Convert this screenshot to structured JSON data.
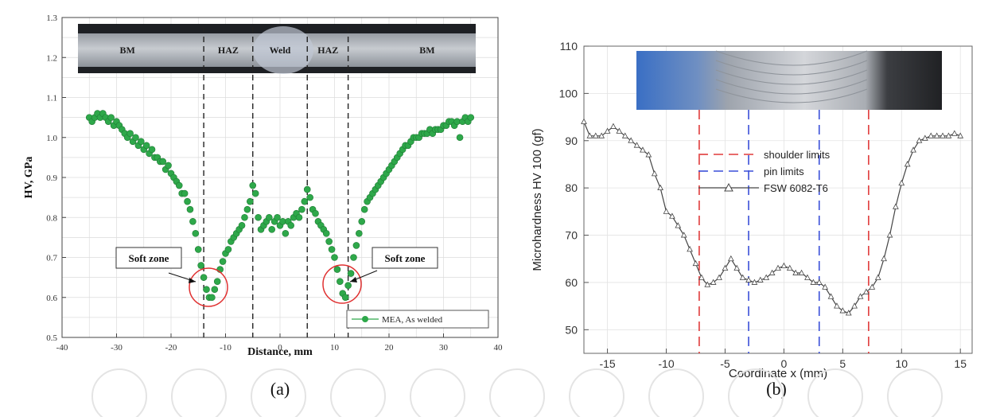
{
  "chart_data": [
    {
      "type": "scatter",
      "panel_label": "(a)",
      "xlabel": "Distance, mm",
      "ylabel": "HV, GPa",
      "xlim": [
        -40,
        40
      ],
      "ylim": [
        0.5,
        1.3
      ],
      "xticks": [
        "-40",
        "-30",
        "-20",
        "-10",
        "0",
        "10",
        "20",
        "30",
        "40"
      ],
      "yticks": [
        "0.5",
        "0.6",
        "0.7",
        "0.8",
        "0.9",
        "1.0",
        "1.1",
        "1.2",
        "1.3"
      ],
      "grid": true,
      "legend_position": "bottom-right",
      "vlines": [
        -14,
        -5,
        5,
        12.5
      ],
      "micrograph_labels": [
        "BM",
        "HAZ",
        "Weld",
        "HAZ",
        "BM"
      ],
      "annotations": [
        {
          "text": "Soft zone",
          "x": -13,
          "y": 0.61
        },
        {
          "text": "Soft zone",
          "x": 11,
          "y": 0.615
        }
      ],
      "series": [
        {
          "name": "MEA, As welded",
          "color": "#2ea84a",
          "points": [
            [
              -35,
              1.05
            ],
            [
              -34.5,
              1.04
            ],
            [
              -34,
              1.05
            ],
            [
              -33.5,
              1.06
            ],
            [
              -33,
              1.05
            ],
            [
              -32.5,
              1.06
            ],
            [
              -32,
              1.05
            ],
            [
              -31.5,
              1.04
            ],
            [
              -31,
              1.05
            ],
            [
              -30.5,
              1.03
            ],
            [
              -30,
              1.04
            ],
            [
              -29.5,
              1.03
            ],
            [
              -29,
              1.02
            ],
            [
              -28.5,
              1.01
            ],
            [
              -28,
              1.0
            ],
            [
              -27.5,
              1.01
            ],
            [
              -27,
              0.99
            ],
            [
              -26.5,
              1.0
            ],
            [
              -26,
              0.98
            ],
            [
              -25.5,
              0.99
            ],
            [
              -25,
              0.97
            ],
            [
              -24.5,
              0.98
            ],
            [
              -24,
              0.96
            ],
            [
              -23.5,
              0.97
            ],
            [
              -23,
              0.95
            ],
            [
              -22.5,
              0.95
            ],
            [
              -22,
              0.94
            ],
            [
              -21.5,
              0.94
            ],
            [
              -21,
              0.92
            ],
            [
              -20.5,
              0.93
            ],
            [
              -20,
              0.91
            ],
            [
              -19.5,
              0.9
            ],
            [
              -19,
              0.89
            ],
            [
              -18.5,
              0.88
            ],
            [
              -18,
              0.86
            ],
            [
              -17.5,
              0.86
            ],
            [
              -17,
              0.84
            ],
            [
              -16.5,
              0.82
            ],
            [
              -16,
              0.79
            ],
            [
              -15.5,
              0.76
            ],
            [
              -15,
              0.72
            ],
            [
              -14.5,
              0.68
            ],
            [
              -14,
              0.65
            ],
            [
              -13.5,
              0.62
            ],
            [
              -13,
              0.6
            ],
            [
              -12.5,
              0.6
            ],
            [
              -12,
              0.62
            ],
            [
              -11.5,
              0.64
            ],
            [
              -11,
              0.67
            ],
            [
              -10.5,
              0.69
            ],
            [
              -10,
              0.71
            ],
            [
              -9.5,
              0.72
            ],
            [
              -9,
              0.74
            ],
            [
              -8.5,
              0.75
            ],
            [
              -8,
              0.76
            ],
            [
              -7.5,
              0.77
            ],
            [
              -7,
              0.78
            ],
            [
              -6.5,
              0.8
            ],
            [
              -6,
              0.82
            ],
            [
              -5.5,
              0.84
            ],
            [
              -5,
              0.88
            ],
            [
              -4.5,
              0.86
            ],
            [
              -4,
              0.8
            ],
            [
              -3.5,
              0.77
            ],
            [
              -3,
              0.78
            ],
            [
              -2.5,
              0.79
            ],
            [
              -2,
              0.8
            ],
            [
              -1.5,
              0.77
            ],
            [
              -1,
              0.79
            ],
            [
              -0.5,
              0.8
            ],
            [
              0,
              0.78
            ],
            [
              0.5,
              0.79
            ],
            [
              1,
              0.76
            ],
            [
              1.5,
              0.79
            ],
            [
              2,
              0.78
            ],
            [
              2.5,
              0.8
            ],
            [
              3,
              0.81
            ],
            [
              3.5,
              0.8
            ],
            [
              4,
              0.82
            ],
            [
              4.5,
              0.84
            ],
            [
              5,
              0.87
            ],
            [
              5.5,
              0.85
            ],
            [
              6,
              0.82
            ],
            [
              6.5,
              0.81
            ],
            [
              7,
              0.79
            ],
            [
              7.5,
              0.78
            ],
            [
              8,
              0.77
            ],
            [
              8.5,
              0.76
            ],
            [
              9,
              0.74
            ],
            [
              9.5,
              0.72
            ],
            [
              10,
              0.7
            ],
            [
              10.5,
              0.67
            ],
            [
              11,
              0.64
            ],
            [
              11.5,
              0.61
            ],
            [
              12,
              0.6
            ],
            [
              12.5,
              0.63
            ],
            [
              13,
              0.66
            ],
            [
              13.5,
              0.7
            ],
            [
              14,
              0.73
            ],
            [
              14.5,
              0.76
            ],
            [
              15,
              0.79
            ],
            [
              15.5,
              0.82
            ],
            [
              16,
              0.84
            ],
            [
              16.5,
              0.85
            ],
            [
              17,
              0.86
            ],
            [
              17.5,
              0.87
            ],
            [
              18,
              0.88
            ],
            [
              18.5,
              0.89
            ],
            [
              19,
              0.9
            ],
            [
              19.5,
              0.91
            ],
            [
              20,
              0.92
            ],
            [
              20.5,
              0.93
            ],
            [
              21,
              0.94
            ],
            [
              21.5,
              0.95
            ],
            [
              22,
              0.96
            ],
            [
              22.5,
              0.97
            ],
            [
              23,
              0.98
            ],
            [
              23.5,
              0.98
            ],
            [
              24,
              0.99
            ],
            [
              24.5,
              1.0
            ],
            [
              25,
              1.0
            ],
            [
              25.5,
              1.0
            ],
            [
              26,
              1.01
            ],
            [
              26.5,
              1.01
            ],
            [
              27,
              1.01
            ],
            [
              27.5,
              1.02
            ],
            [
              28,
              1.01
            ],
            [
              28.5,
              1.02
            ],
            [
              29,
              1.02
            ],
            [
              29.5,
              1.02
            ],
            [
              30,
              1.03
            ],
            [
              30.5,
              1.03
            ],
            [
              31,
              1.04
            ],
            [
              31.5,
              1.04
            ],
            [
              32,
              1.03
            ],
            [
              32.5,
              1.04
            ],
            [
              33,
              1.0
            ],
            [
              33.5,
              1.04
            ],
            [
              34,
              1.05
            ],
            [
              34.5,
              1.04
            ],
            [
              35,
              1.05
            ]
          ]
        }
      ]
    },
    {
      "type": "line",
      "panel_label": "(b)",
      "xlabel": "Coordinate x (mm)",
      "ylabel": "Microhardness HV 100 (gf)",
      "xlim": [
        -17,
        16
      ],
      "ylim": [
        45,
        110
      ],
      "xticks": [
        "-15",
        "-10",
        "-5",
        "0",
        "5",
        "10",
        "15"
      ],
      "yticks": [
        "50",
        "60",
        "70",
        "80",
        "90",
        "100",
        "110"
      ],
      "grid": true,
      "legend_position": "center-right",
      "legend": [
        {
          "label": "shoulder limits",
          "style": "dashed",
          "color": "#e03a3a"
        },
        {
          "label": "pin limits",
          "style": "dashed",
          "color": "#3a4fd8"
        },
        {
          "label": "FSW 6082-T6",
          "style": "line-triangle",
          "color": "#444444"
        }
      ],
      "shoulder_limits": [
        -7.2,
        7.2
      ],
      "pin_limits": [
        -3,
        3
      ],
      "series": [
        {
          "name": "FSW 6082-T6",
          "color": "#444444",
          "points": [
            [
              -17,
              94
            ],
            [
              -16.5,
              91
            ],
            [
              -16,
              91
            ],
            [
              -15.5,
              91
            ],
            [
              -15,
              92
            ],
            [
              -14.5,
              93
            ],
            [
              -14,
              92
            ],
            [
              -13.5,
              91
            ],
            [
              -13,
              90
            ],
            [
              -12.5,
              89
            ],
            [
              -12,
              88
            ],
            [
              -11.5,
              87
            ],
            [
              -11,
              83
            ],
            [
              -10.5,
              80
            ],
            [
              -10,
              75
            ],
            [
              -9.5,
              74
            ],
            [
              -9,
              72
            ],
            [
              -8.5,
              70
            ],
            [
              -8,
              67
            ],
            [
              -7.5,
              64
            ],
            [
              -7,
              61
            ],
            [
              -6.5,
              59.5
            ],
            [
              -6,
              60
            ],
            [
              -5.5,
              61
            ],
            [
              -5,
              63
            ],
            [
              -4.5,
              65
            ],
            [
              -4,
              63
            ],
            [
              -3.5,
              61
            ],
            [
              -3,
              60.5
            ],
            [
              -2.5,
              60
            ],
            [
              -2,
              60.5
            ],
            [
              -1.5,
              61
            ],
            [
              -1,
              62
            ],
            [
              -0.5,
              63
            ],
            [
              0,
              63.5
            ],
            [
              0.5,
              63
            ],
            [
              1,
              62
            ],
            [
              1.5,
              62
            ],
            [
              2,
              61
            ],
            [
              2.5,
              60
            ],
            [
              3,
              60
            ],
            [
              3.5,
              59
            ],
            [
              4,
              57
            ],
            [
              4.5,
              55
            ],
            [
              5,
              54
            ],
            [
              5.5,
              53.5
            ],
            [
              6,
              55
            ],
            [
              6.5,
              57
            ],
            [
              7,
              58
            ],
            [
              7.5,
              59
            ],
            [
              8,
              61
            ],
            [
              8.5,
              65
            ],
            [
              9,
              70
            ],
            [
              9.5,
              76
            ],
            [
              10,
              81
            ],
            [
              10.5,
              85
            ],
            [
              11,
              88
            ],
            [
              11.5,
              90
            ],
            [
              12,
              90.5
            ],
            [
              12.5,
              91
            ],
            [
              13,
              91
            ],
            [
              13.5,
              91
            ],
            [
              14,
              91
            ],
            [
              14.5,
              91.5
            ],
            [
              15,
              91
            ]
          ]
        }
      ]
    }
  ]
}
